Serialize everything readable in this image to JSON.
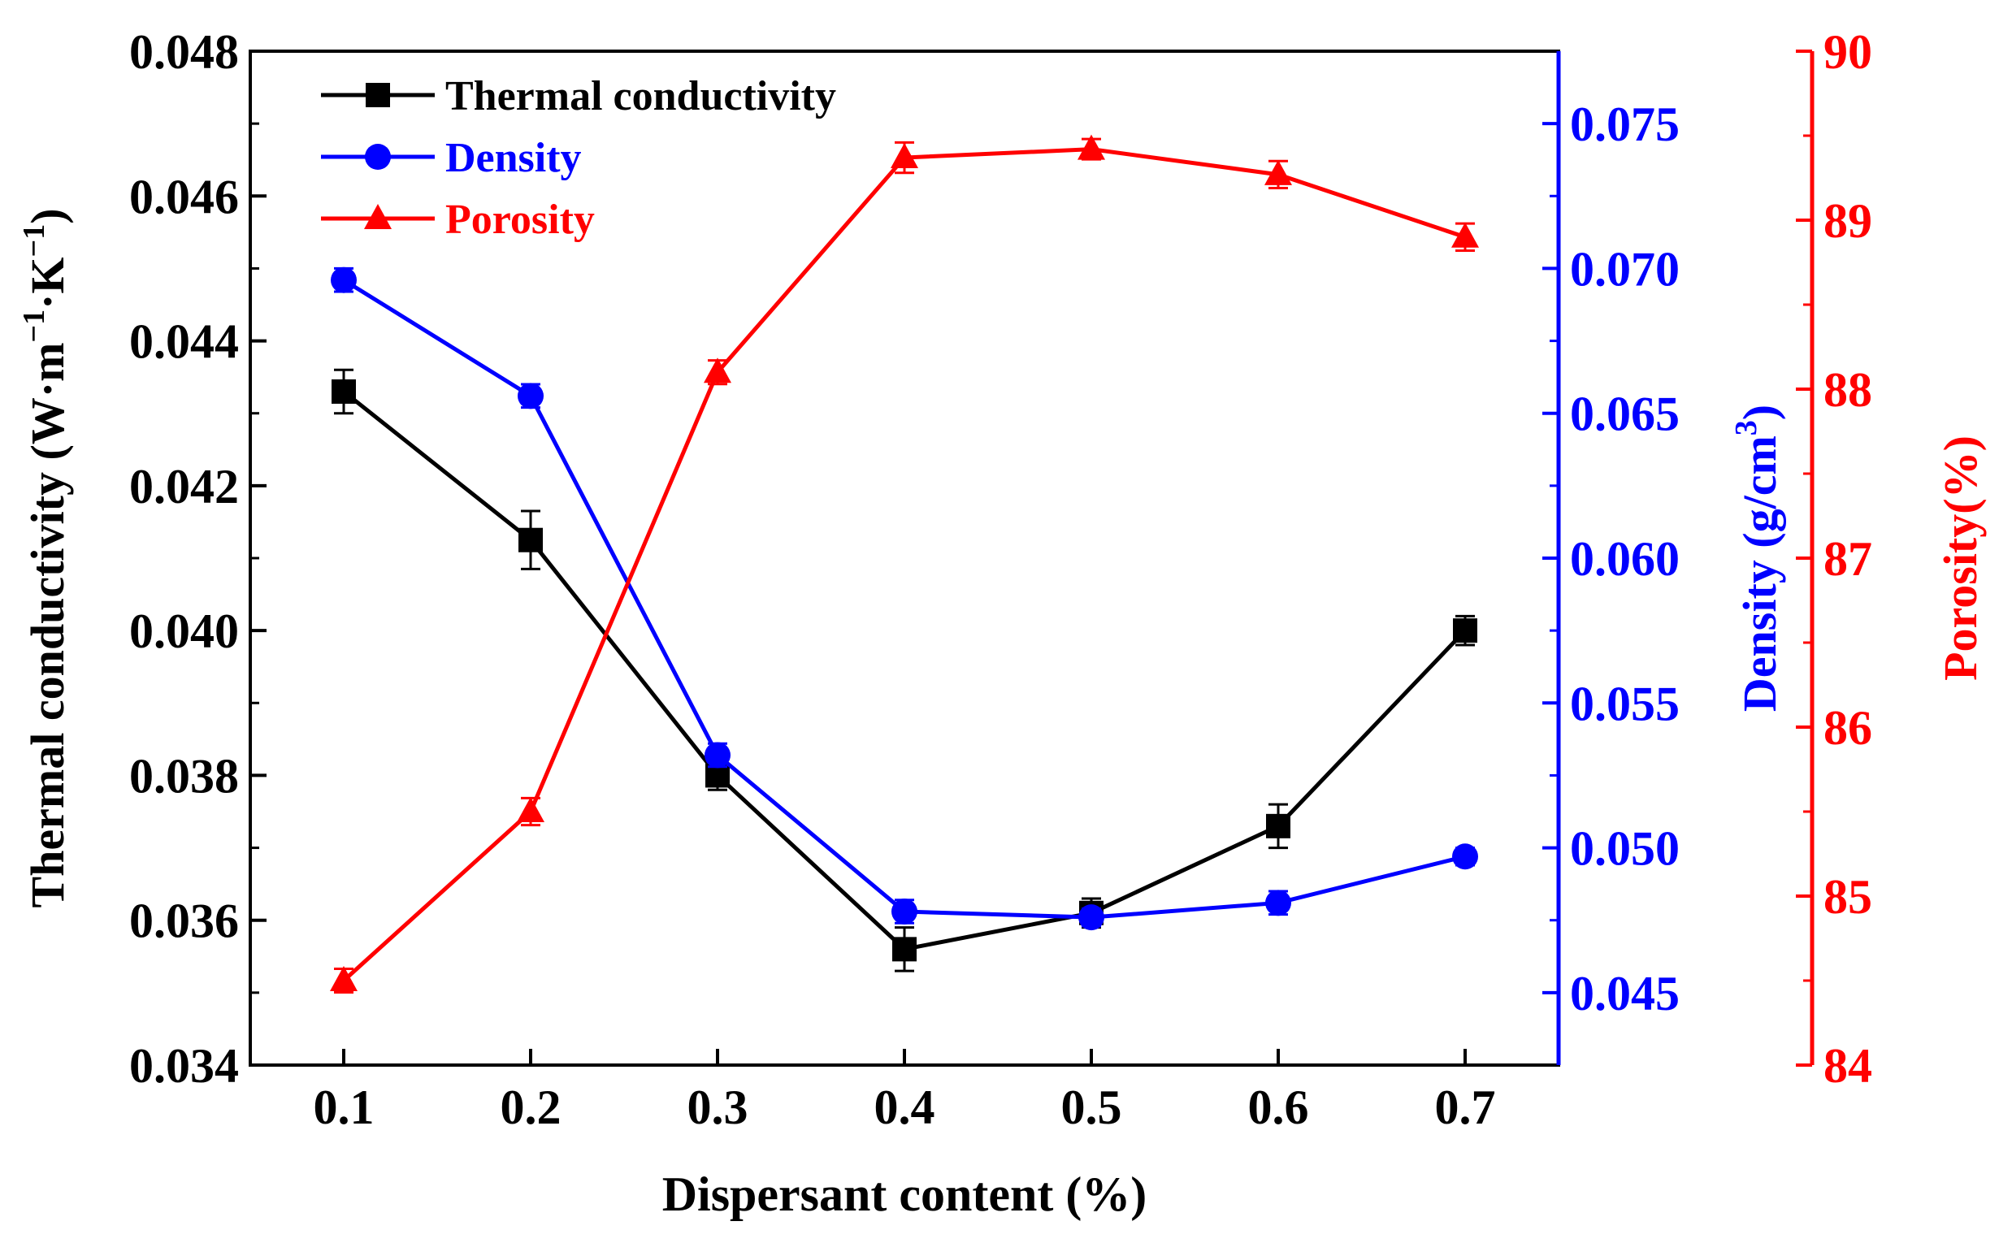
{
  "chart_data": {
    "type": "line",
    "xlabel": "Dispersant content (%)",
    "x": [
      0.1,
      0.2,
      0.3,
      0.4,
      0.5,
      0.6,
      0.7
    ],
    "x_ticks": [
      "0.1",
      "0.2",
      "0.3",
      "0.4",
      "0.5",
      "0.6",
      "0.7"
    ],
    "xlim": [
      0.05,
      0.75
    ],
    "grid": false,
    "legend_position": "top-left",
    "axes": {
      "left": {
        "label_main": "Thermal conductivity (W·m",
        "label_sup1": "−1",
        "label_mid": "·K",
        "label_sup2": "−1",
        "label_end": ")",
        "color": "#000000",
        "ylim": [
          0.034,
          0.048
        ],
        "ticks": [
          "0.034",
          "0.036",
          "0.038",
          "0.040",
          "0.042",
          "0.044",
          "0.046",
          "0.048"
        ]
      },
      "right1": {
        "label_main": "Density (g/cm",
        "label_sup": "3",
        "label_end": ")",
        "color": "#0000ff",
        "ylim": [
          0.0425,
          0.0775
        ],
        "ticks": [
          "0.045",
          "0.050",
          "0.055",
          "0.060",
          "0.065",
          "0.070",
          "0.075"
        ]
      },
      "right2": {
        "label": "Porosity(%)",
        "color": "#ff0000",
        "ylim": [
          84,
          90
        ],
        "ticks": [
          "84",
          "85",
          "86",
          "87",
          "88",
          "89",
          "90"
        ]
      }
    },
    "series": [
      {
        "name": "Thermal conductivity",
        "axis": "left",
        "color": "#000000",
        "marker": "square",
        "values": [
          0.0433,
          0.04125,
          0.038,
          0.0356,
          0.0361,
          0.0373,
          0.04
        ],
        "errors": [
          0.0003,
          0.0004,
          0.0002,
          0.0003,
          0.0002,
          0.0003,
          0.0002
        ]
      },
      {
        "name": "Density",
        "axis": "right1",
        "color": "#0000ff",
        "marker": "circle",
        "values": [
          0.0696,
          0.0656,
          0.0532,
          0.0478,
          0.0476,
          0.0481,
          0.0497
        ],
        "errors": [
          0.0004,
          0.0004,
          0.0004,
          0.0004,
          0.0003,
          0.0004,
          0.0003
        ]
      },
      {
        "name": "Porosity",
        "axis": "right2",
        "color": "#ff0000",
        "marker": "triangle",
        "values": [
          84.5,
          85.5,
          88.1,
          89.37,
          89.42,
          89.27,
          88.9
        ],
        "errors": [
          0.07,
          0.08,
          0.07,
          0.09,
          0.06,
          0.08,
          0.08
        ]
      }
    ]
  }
}
